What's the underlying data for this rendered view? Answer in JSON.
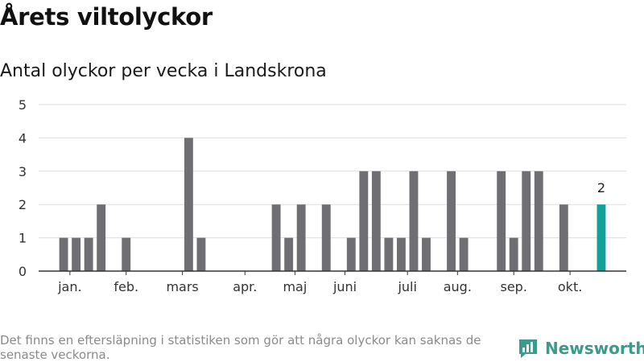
{
  "header": {
    "title": "Årets viltolyckor",
    "subtitle": "Antal olyckor per vecka i Landskrona"
  },
  "footer": {
    "note": "Det finns en eftersläpning i statistiken som gör att några olyckor kan saknas de senaste veckorna.",
    "brand": "Newsworthy"
  },
  "colors": {
    "bar": "#6f6f73",
    "highlight": "#14a09a",
    "grid": "#dddddd",
    "axis": "#333333",
    "brand": "#3a9a8c"
  },
  "chart_data": {
    "type": "bar",
    "title": "Antal olyckor per vecka i Landskrona",
    "xlabel": "",
    "ylabel": "",
    "ylim": [
      0,
      5
    ],
    "yticks": [
      0,
      1,
      2,
      3,
      4,
      5
    ],
    "grid": true,
    "x_domain": [
      1,
      48
    ],
    "weeks": [
      1,
      2,
      3,
      4,
      5,
      6,
      7,
      8,
      9,
      10,
      11,
      12,
      13,
      14,
      15,
      16,
      17,
      18,
      19,
      20,
      21,
      22,
      23,
      24,
      25,
      26,
      27,
      28,
      29,
      30,
      31,
      32,
      33,
      34,
      35,
      36,
      37,
      38,
      39,
      40,
      41,
      42,
      43,
      44,
      45,
      46
    ],
    "values": [
      0,
      0,
      1,
      1,
      1,
      2,
      0,
      1,
      0,
      0,
      0,
      0,
      4,
      1,
      0,
      0,
      0,
      0,
      0,
      2,
      1,
      2,
      0,
      2,
      0,
      1,
      3,
      3,
      1,
      1,
      3,
      1,
      0,
      3,
      1,
      0,
      0,
      3,
      1,
      3,
      3,
      0,
      2,
      0,
      0,
      2
    ],
    "highlight_index": 45,
    "highlight_label": "2",
    "month_labels": [
      {
        "label": "jan.",
        "week": 3.5
      },
      {
        "label": "feb.",
        "week": 8
      },
      {
        "label": "mars",
        "week": 12.5
      },
      {
        "label": "apr.",
        "week": 17.5
      },
      {
        "label": "maj",
        "week": 21.5
      },
      {
        "label": "juni",
        "week": 25.5
      },
      {
        "label": "juli",
        "week": 30.5
      },
      {
        "label": "aug.",
        "week": 34.5
      },
      {
        "label": "sep.",
        "week": 39
      },
      {
        "label": "okt.",
        "week": 43.5
      }
    ]
  }
}
